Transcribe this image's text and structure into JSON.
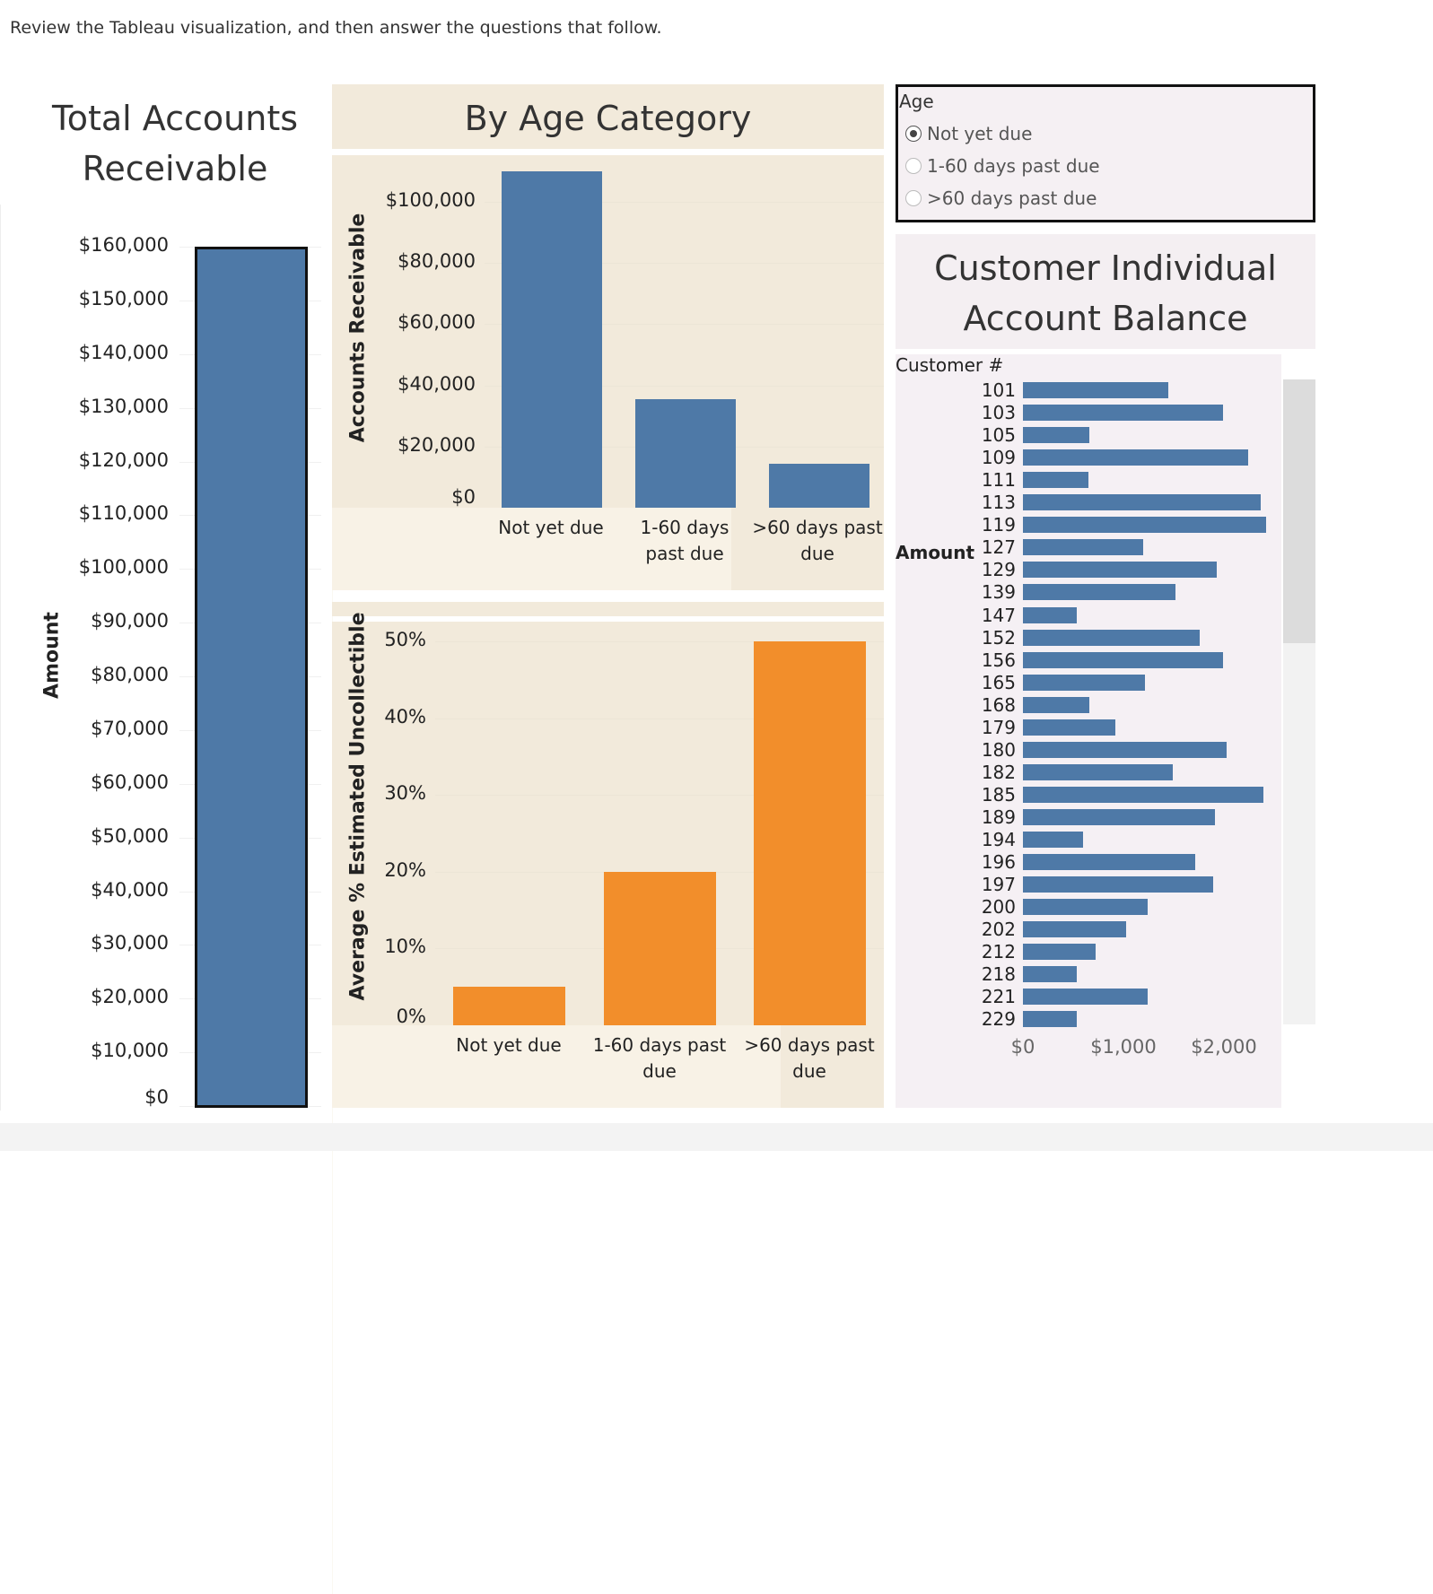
{
  "intro": "Review the Tableau visualization, and then answer the questions that follow.",
  "colors": {
    "blue": "#4e79a7",
    "orange": "#f28e2b",
    "tan_bg": "#f2eadb",
    "pink_bg": "#f5f0f3"
  },
  "total": {
    "title_line1": "Total Accounts",
    "title_line2": "Receivable",
    "ylabel": "Amount"
  },
  "age_header": {
    "title": "By Age Category"
  },
  "filter": {
    "title": "Age",
    "options": [
      {
        "label": "Not yet due",
        "selected": true
      },
      {
        "label": "1-60 days past due",
        "selected": false
      },
      {
        "label": ">60 days past due",
        "selected": false
      }
    ]
  },
  "customer_header": {
    "title_line1": "Customer Individual",
    "title_line2": "Account Balance"
  },
  "chart_data": [
    {
      "type": "bar",
      "title": "",
      "ylabel": "Amount",
      "categories": [
        ""
      ],
      "values": [
        160000
      ],
      "ylim": [
        0,
        160000
      ],
      "yticks": [
        "$0",
        "$10,000",
        "$20,000",
        "$30,000",
        "$40,000",
        "$50,000",
        "$60,000",
        "$70,000",
        "$80,000",
        "$90,000",
        "$100,000",
        "$110,000",
        "$120,000",
        "$130,000",
        "$140,000",
        "$150,000",
        "$160,000"
      ]
    },
    {
      "type": "bar",
      "ylabel": "Accounts Receivable",
      "categories": [
        [
          "Not yet due",
          ""
        ],
        [
          "1-60 days",
          "past due"
        ],
        [
          ">60 days past",
          "due"
        ]
      ],
      "values": [
        110000,
        35500,
        14500
      ],
      "ylim": [
        0,
        110000
      ],
      "yticks": [
        "$0",
        "$20,000",
        "$40,000",
        "$60,000",
        "$80,000",
        "$100,000"
      ]
    },
    {
      "type": "bar",
      "ylabel": "Average % Estimated Uncollectible",
      "categories": [
        [
          "Not yet due",
          ""
        ],
        [
          "1-60 days past",
          "due"
        ],
        [
          ">60 days past",
          "due"
        ]
      ],
      "values": [
        5,
        20,
        50
      ],
      "ylim": [
        0,
        50
      ],
      "yticks": [
        "0%",
        "10%",
        "20%",
        "30%",
        "40%",
        "50%"
      ]
    },
    {
      "type": "bar",
      "orientation": "horizontal",
      "row_header": "Customer #",
      "xlabel": "Amount",
      "xlim": [
        0,
        2500
      ],
      "xticks": [
        "$0",
        "$1,000",
        "$2,000"
      ],
      "categories": [
        "101",
        "103",
        "105",
        "109",
        "111",
        "113",
        "119",
        "127",
        "129",
        "139",
        "147",
        "152",
        "156",
        "165",
        "168",
        "179",
        "180",
        "182",
        "185",
        "189",
        "194",
        "196",
        "197",
        "200",
        "202",
        "212",
        "218",
        "221",
        "229"
      ],
      "values": [
        1450,
        1990,
        660,
        2240,
        650,
        2370,
        2420,
        1200,
        1930,
        1520,
        540,
        1760,
        1990,
        1210,
        660,
        920,
        2030,
        1490,
        2390,
        1910,
        600,
        1710,
        1890,
        1240,
        1030,
        720,
        540,
        1240,
        540
      ]
    }
  ]
}
